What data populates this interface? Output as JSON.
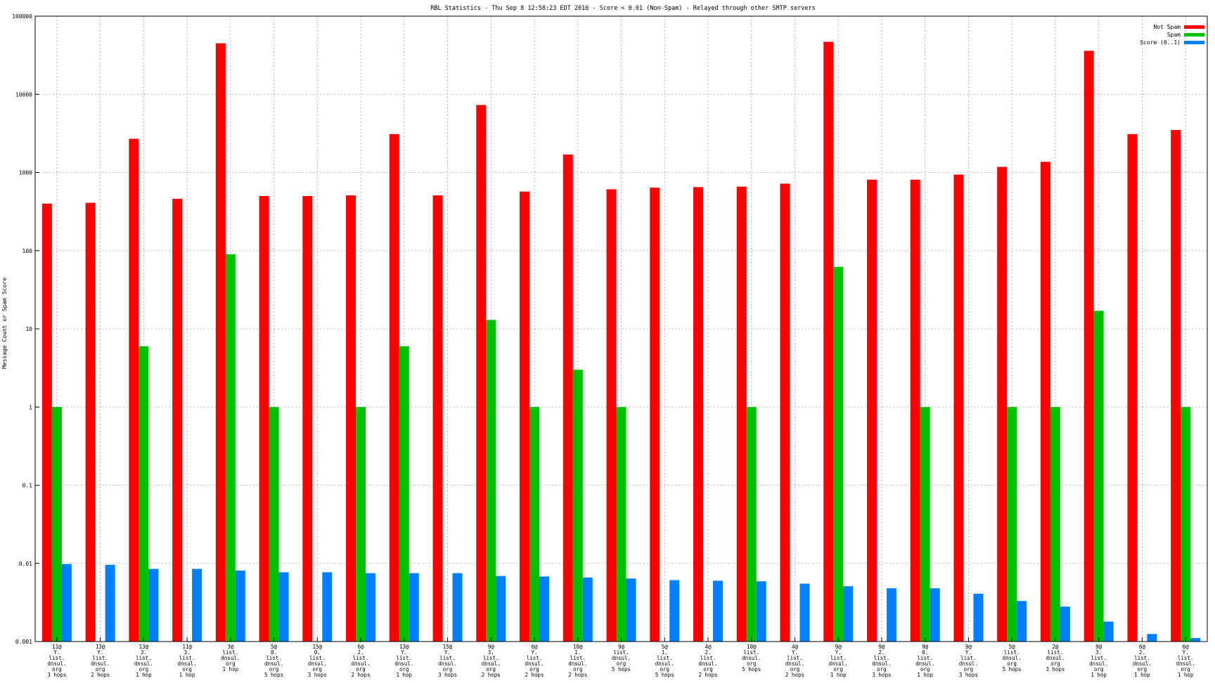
{
  "chart_data": {
    "type": "bar",
    "title": "RBL Statistics - Thu Sep  8 12:58:23 EDT 2016 - Score < 0.01 (Non-Spam) - Relayed through other SMTP servers",
    "ylabel": "Message Count or Spam Score",
    "xlabel": "",
    "yscale": "log",
    "ylim": [
      0.001,
      100000
    ],
    "y_ticks": [
      "100000",
      "10000",
      "1000",
      "100",
      "10",
      "1",
      "0.1",
      "0.01",
      "0.001"
    ],
    "grid": true,
    "legend_position": "top-right",
    "categories": [
      [
        "11@",
        "Y.",
        "list.",
        "dnsul.",
        "org",
        "3 hops"
      ],
      [
        "13@",
        "Y.",
        "list.",
        "dnsul.",
        "org",
        "2 hops"
      ],
      [
        "13@",
        "3.",
        "list.",
        "dnsul.",
        "org",
        "1 hop"
      ],
      [
        "11@",
        "3.",
        "list.",
        "dnsul.",
        "org",
        "1 hop"
      ],
      [
        "3@",
        "list.",
        "dnsul.",
        "org",
        "1 hop"
      ],
      [
        "5@",
        "0.",
        "list.",
        "dnsul.",
        "org",
        "5 hops"
      ],
      [
        "15@",
        "0.",
        "list.",
        "dnsul.",
        "org",
        "3 hops"
      ],
      [
        "6@",
        "2.",
        "list.",
        "dnsul.",
        "org",
        "2 hops"
      ],
      [
        "13@",
        "Y.",
        "list.",
        "dnsul.",
        "org",
        "1 hop"
      ],
      [
        "15@",
        "Y.",
        "list.",
        "dnsul.",
        "org",
        "3 hops"
      ],
      [
        "9@",
        "3.",
        "list.",
        "dnsul.",
        "org",
        "2 hops"
      ],
      [
        "6@",
        "Y.",
        "list.",
        "dnsul.",
        "org",
        "2 hops"
      ],
      [
        "10@",
        "1.",
        "list.",
        "dnsul.",
        "org",
        "2 hops"
      ],
      [
        "9@",
        "list.",
        "dnsul.",
        "org",
        "5 hops"
      ],
      [
        "5@",
        "1.",
        "list.",
        "dnsul.",
        "org",
        "5 hops"
      ],
      [
        "4@",
        "2.",
        "list.",
        "dnsul.",
        "org",
        "2 hops"
      ],
      [
        "10@",
        "list.",
        "dnsul.",
        "org",
        "5 hops"
      ],
      [
        "4@",
        "Y.",
        "list.",
        "dnsul.",
        "org",
        "2 hops"
      ],
      [
        "9@",
        "Y.",
        "list.",
        "dnsul.",
        "org",
        "1 hop"
      ],
      [
        "9@",
        "2.",
        "list.",
        "dnsul.",
        "org",
        "3 hops"
      ],
      [
        "9@",
        "0.",
        "list.",
        "dnsul.",
        "org",
        "1 hop"
      ],
      [
        "9@",
        "Y.",
        "list.",
        "dnsul.",
        "org",
        "3 hops"
      ],
      [
        "5@",
        "list.",
        "dnsul.",
        "org",
        "5 hops"
      ],
      [
        "2@",
        "list.",
        "dnsul.",
        "org",
        "3 hops"
      ],
      [
        "9@",
        "3.",
        "list.",
        "dnsul.",
        "org",
        "1 hop"
      ],
      [
        "6@",
        "2.",
        "list.",
        "dnsul.",
        "org",
        "1 hop"
      ],
      [
        "6@",
        "Y.",
        "list.",
        "dnsul.",
        "org",
        "1 hop"
      ]
    ],
    "series": [
      {
        "name": "Not Spam",
        "color": "#ff0000",
        "values": [
          400,
          410,
          2700,
          460,
          45000,
          500,
          500,
          510,
          3100,
          510,
          7300,
          570,
          1700,
          610,
          640,
          650,
          660,
          720,
          47000,
          810,
          810,
          940,
          1180,
          1370,
          36000,
          3100,
          3500
        ]
      },
      {
        "name": "Spam",
        "color": "#00c000",
        "values": [
          1,
          null,
          6,
          null,
          90,
          1,
          null,
          1,
          6,
          null,
          13,
          1,
          3,
          1,
          null,
          null,
          1,
          null,
          62,
          null,
          1,
          null,
          1,
          1,
          17,
          null,
          1
        ]
      },
      {
        "name": "Score (0..1)",
        "color": "#0080ff",
        "values": [
          0.0098,
          0.0096,
          0.0085,
          0.0085,
          0.0081,
          0.0077,
          0.0077,
          0.0075,
          0.0075,
          0.0075,
          0.0069,
          0.0068,
          0.0066,
          0.0064,
          0.0061,
          0.006,
          0.0059,
          0.0055,
          0.0051,
          0.0048,
          0.0048,
          0.0041,
          0.0033,
          0.0028,
          0.0018,
          0.00125,
          0.00111
        ]
      }
    ]
  }
}
